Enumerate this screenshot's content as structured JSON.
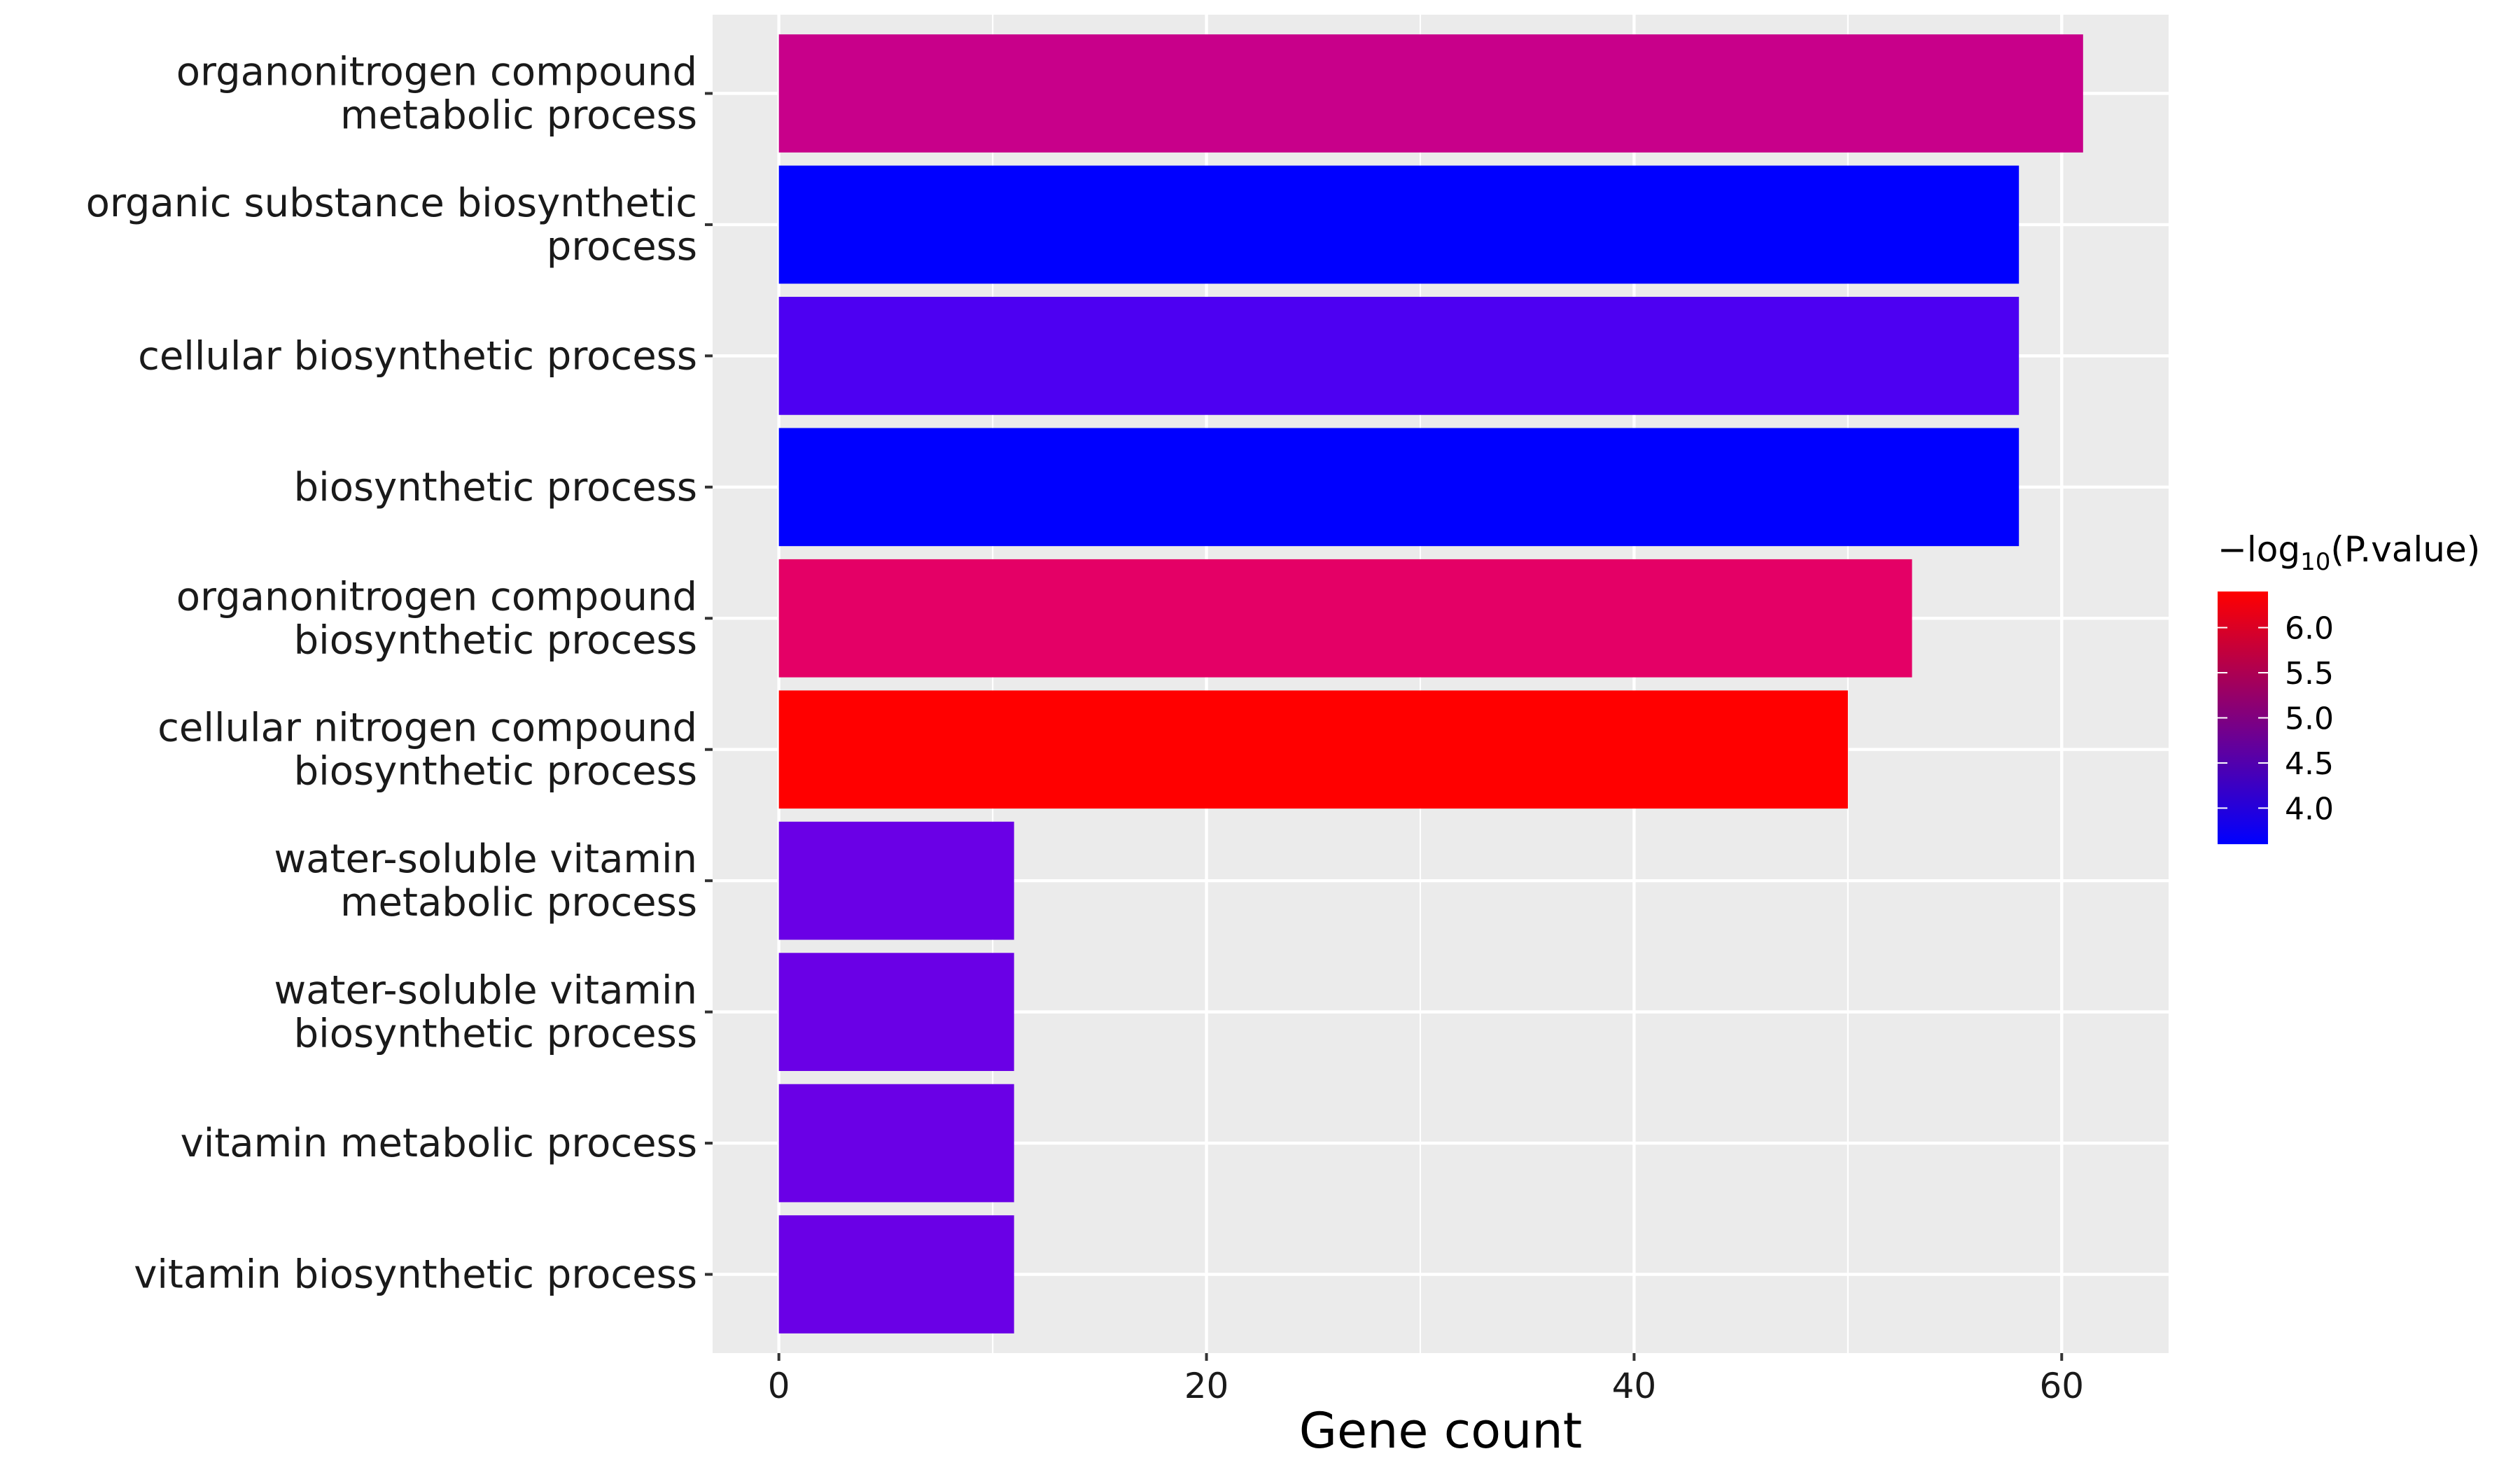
{
  "chart_data": {
    "type": "bar",
    "orientation": "horizontal",
    "xlabel": "Gene count",
    "ylabel": "",
    "xlim": [
      -3.1,
      65
    ],
    "xticks": [
      0,
      20,
      40,
      60
    ],
    "xtick_labels": [
      "0",
      "20",
      "40",
      "60"
    ],
    "grid": true,
    "categories": [
      [
        "organonitrogen compound",
        "metabolic process"
      ],
      [
        "organic substance biosynthetic",
        "process"
      ],
      [
        "cellular biosynthetic process"
      ],
      [
        "biosynthetic process"
      ],
      [
        "organonitrogen compound",
        "biosynthetic process"
      ],
      [
        "cellular nitrogen compound",
        "biosynthetic process"
      ],
      [
        "water-soluble vitamin",
        "metabolic process"
      ],
      [
        "water-soluble vitamin",
        "biosynthetic process"
      ],
      [
        "vitamin metabolic process"
      ],
      [
        "vitamin biosynthetic process"
      ]
    ],
    "values": [
      61,
      58,
      58,
      58,
      53,
      50,
      11,
      11,
      11,
      11
    ],
    "color_values": [
      5.0,
      3.65,
      3.95,
      3.65,
      5.3,
      6.3,
      4.05,
      4.05,
      4.05,
      4.05
    ],
    "colors": [
      "#C8008A",
      "#0000FF",
      "#4D00F2",
      "#0000FF",
      "#E40066",
      "#FF0000",
      "#6A00E6",
      "#6A00E6",
      "#6A00E6",
      "#6A00E6"
    ],
    "legend": {
      "title_prefix": "−log",
      "title_sub": "10",
      "title_suffix": "(P.value)",
      "position": "right",
      "range": [
        3.6,
        6.4
      ],
      "gradient": [
        "#0000FF",
        "#FF0000"
      ],
      "ticks": [
        4.0,
        4.5,
        5.0,
        5.5,
        6.0
      ],
      "tick_labels": [
        "4.0",
        "4.5",
        "5.0",
        "5.5",
        "6.0"
      ]
    }
  }
}
